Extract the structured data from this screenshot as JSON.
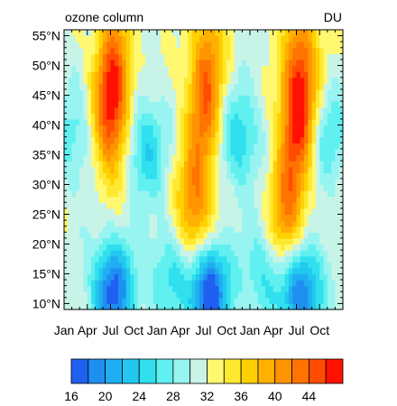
{
  "chart_data": {
    "type": "heatmap",
    "title": "ozone column",
    "units": "DU",
    "x_tick_labels": [
      "Jan",
      "Apr",
      "Jul",
      "Oct",
      "Jan",
      "Apr",
      "Jul",
      "Oct",
      "Jan",
      "Apr",
      "Jul",
      "Oct"
    ],
    "y_tick_labels": [
      "10°N",
      "15°N",
      "20°N",
      "25°N",
      "30°N",
      "35°N",
      "40°N",
      "45°N",
      "50°N",
      "55°N"
    ],
    "y_range": [
      9,
      56
    ],
    "x_range_months": [
      0,
      36
    ],
    "colorbar": {
      "boundaries": [
        16,
        18,
        20,
        22,
        24,
        26,
        28,
        30,
        32,
        34,
        36,
        38,
        40,
        42,
        44,
        46
      ],
      "tick_labels": [
        "16",
        "20",
        "24",
        "28",
        "32",
        "36",
        "40",
        "44"
      ],
      "colors": [
        "#2060f0",
        "#1e8ff0",
        "#20aef2",
        "#22c8f0",
        "#30e0ee",
        "#60f0f0",
        "#98f4f0",
        "#c8f4e8",
        "#fff870",
        "#ffe830",
        "#ffd000",
        "#ffb000",
        "#ff9400",
        "#ff7400",
        "#ff4c00",
        "#ff1000"
      ]
    },
    "field": {
      "background_du": 31.5,
      "features": [
        {
          "kind": "maximum",
          "month": 6.0,
          "lat": 41,
          "value": 44
        },
        {
          "kind": "maximum",
          "month": 6.5,
          "lat": 51,
          "value": 40
        },
        {
          "kind": "maximum",
          "month": 16.8,
          "lat": 26,
          "value": 42
        },
        {
          "kind": "maximum",
          "month": 18.2,
          "lat": 42,
          "value": 41
        },
        {
          "kind": "maximum",
          "month": 18.6,
          "lat": 53,
          "value": 38
        },
        {
          "kind": "maximum",
          "month": 28.8,
          "lat": 25,
          "value": 42
        },
        {
          "kind": "maximum",
          "month": 30.2,
          "lat": 41,
          "value": 45
        },
        {
          "kind": "maximum",
          "month": 30.6,
          "lat": 52,
          "value": 40
        },
        {
          "kind": "minimum",
          "month": 10.5,
          "lat": 36,
          "value": 24
        },
        {
          "kind": "minimum",
          "month": 22.5,
          "lat": 38,
          "value": 24
        },
        {
          "kind": "minimum",
          "month": 34.0,
          "lat": 38,
          "value": 26
        },
        {
          "kind": "minimum",
          "month": 1.5,
          "lat": 38,
          "value": 27
        },
        {
          "kind": "minimum",
          "month": 6.3,
          "lat": 12,
          "value": 17
        },
        {
          "kind": "minimum",
          "month": 18.6,
          "lat": 12,
          "value": 15
        },
        {
          "kind": "minimum",
          "month": 30.6,
          "lat": 12,
          "value": 17
        },
        {
          "kind": "minimum",
          "month": 13.5,
          "lat": 15,
          "value": 26
        },
        {
          "kind": "minimum",
          "month": 25.5,
          "lat": 15,
          "value": 26
        }
      ]
    },
    "grid": false,
    "legend": "bottom"
  }
}
